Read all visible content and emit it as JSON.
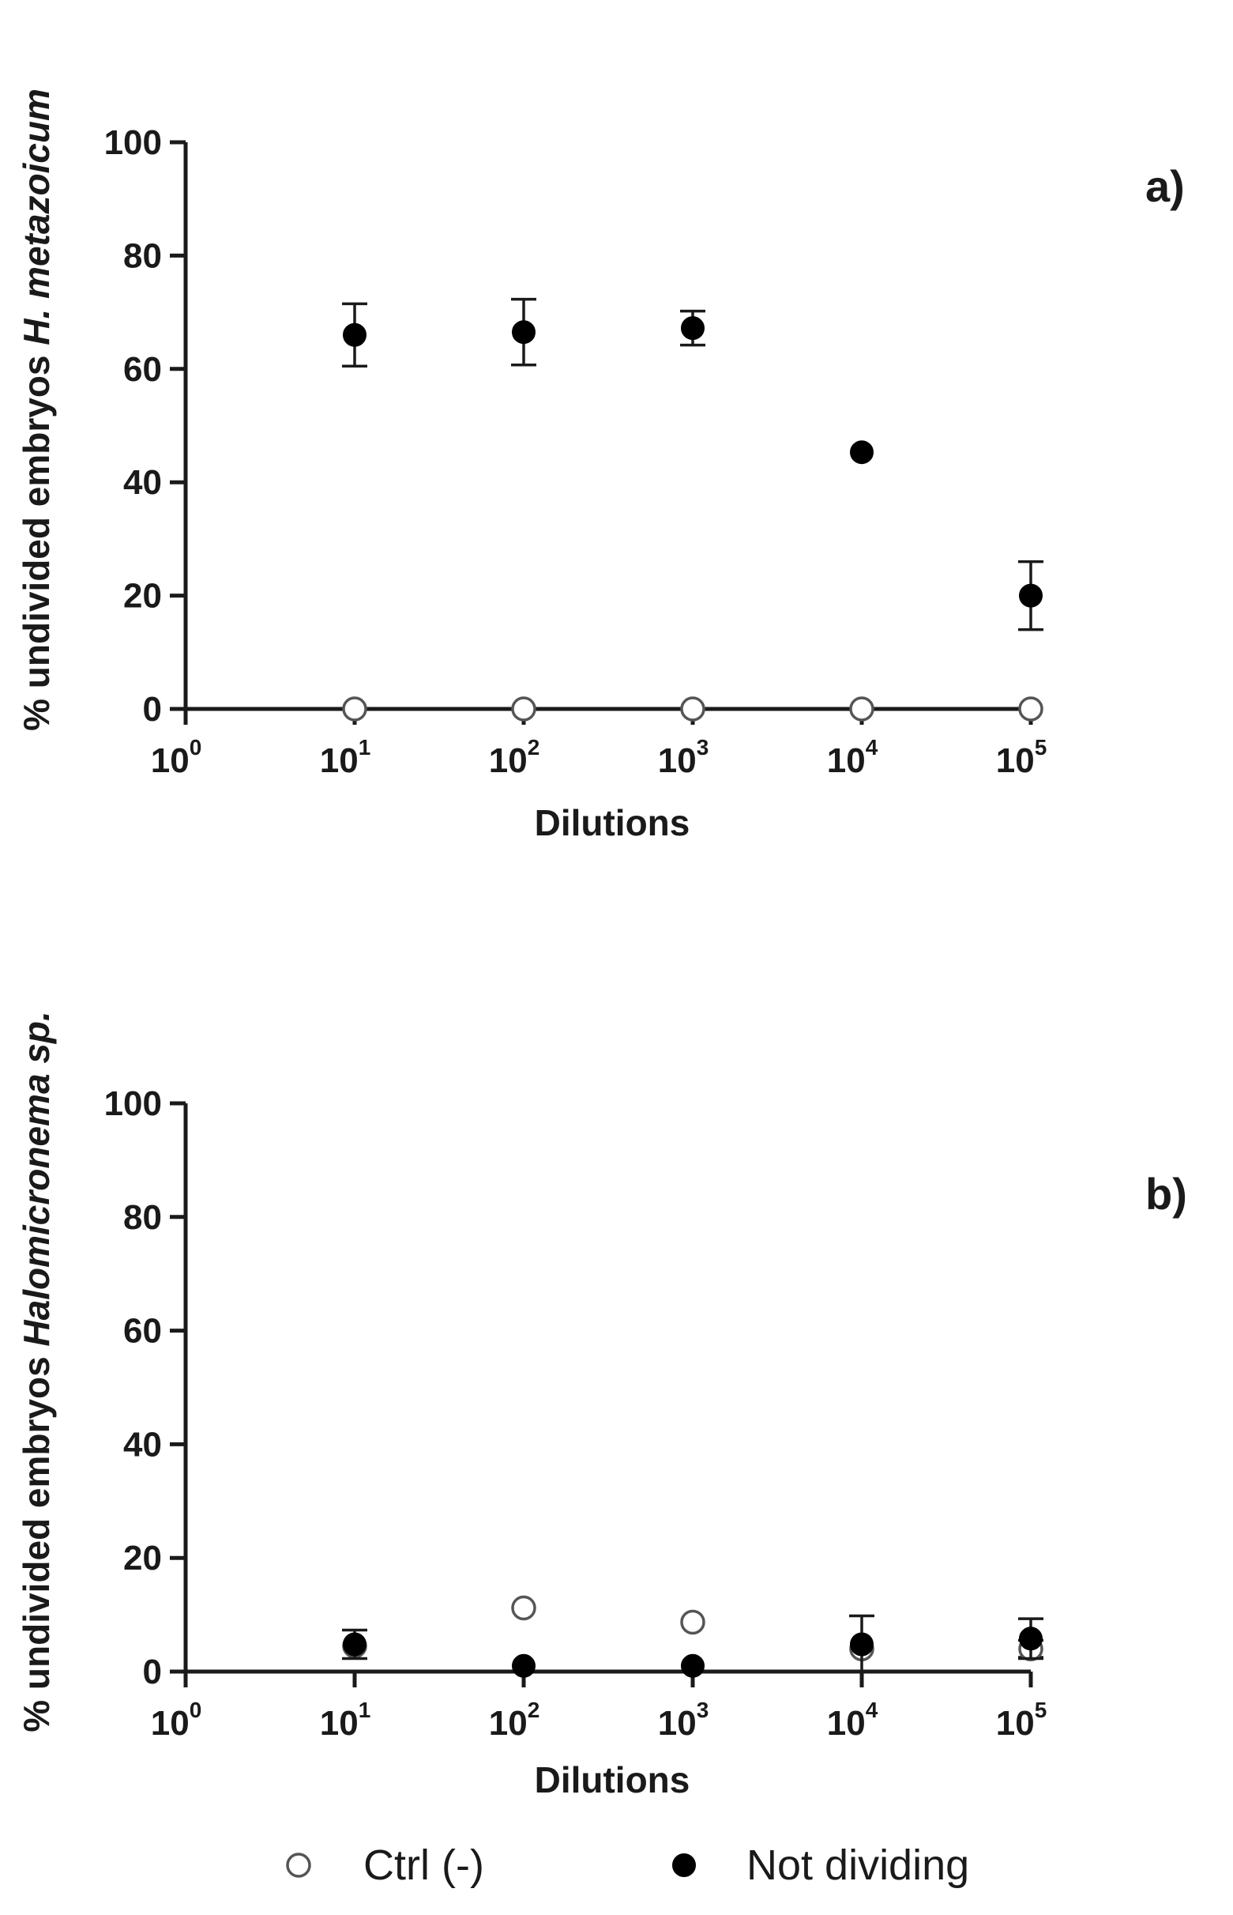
{
  "chart_data": [
    {
      "type": "scatter",
      "panel_label": "a)",
      "xlabel": "Dilutions",
      "ylabel_prefix": "% undivided embryos ",
      "ylabel_italic": "H. metazoicum",
      "x_scale": "log",
      "xlim": [
        1,
        100000
      ],
      "ylim": [
        0,
        100
      ],
      "x_ticks": [
        {
          "base": "10",
          "exp": "0"
        },
        {
          "base": "10",
          "exp": "1"
        },
        {
          "base": "10",
          "exp": "2"
        },
        {
          "base": "10",
          "exp": "3"
        },
        {
          "base": "10",
          "exp": "4"
        },
        {
          "base": "10",
          "exp": "5"
        }
      ],
      "y_ticks": [
        "0",
        "20",
        "40",
        "60",
        "80",
        "100"
      ],
      "series": [
        {
          "name": "Ctrl (-)",
          "marker": "open-circle",
          "points": [
            {
              "x": 10,
              "y": 0,
              "err": 0
            },
            {
              "x": 100,
              "y": 0,
              "err": 0
            },
            {
              "x": 1000,
              "y": 0,
              "err": 0
            },
            {
              "x": 10000,
              "y": 0,
              "err": 0
            },
            {
              "x": 100000,
              "y": 0,
              "err": 0
            }
          ]
        },
        {
          "name": "Not dividing",
          "marker": "filled-circle",
          "points": [
            {
              "x": 10,
              "y": 66,
              "err": 5.5
            },
            {
              "x": 100,
              "y": 66.5,
              "err": 5.8
            },
            {
              "x": 1000,
              "y": 67.2,
              "err": 3
            },
            {
              "x": 10000,
              "y": 45.3,
              "err": 0
            },
            {
              "x": 100000,
              "y": 20,
              "err": 6
            }
          ]
        }
      ]
    },
    {
      "type": "scatter",
      "panel_label": "b)",
      "xlabel": "Dilutions",
      "ylabel_prefix": "% undivided embryos ",
      "ylabel_italic": "Halomicronema sp.",
      "x_scale": "log",
      "xlim": [
        1,
        100000
      ],
      "ylim": [
        0,
        100
      ],
      "x_ticks": [
        {
          "base": "10",
          "exp": "0"
        },
        {
          "base": "10",
          "exp": "1"
        },
        {
          "base": "10",
          "exp": "2"
        },
        {
          "base": "10",
          "exp": "3"
        },
        {
          "base": "10",
          "exp": "4"
        },
        {
          "base": "10",
          "exp": "5"
        }
      ],
      "y_ticks": [
        "0",
        "20",
        "40",
        "60",
        "80",
        "100"
      ],
      "series": [
        {
          "name": "Ctrl (-)",
          "marker": "open-circle",
          "points": [
            {
              "x": 10,
              "y": 4.5,
              "err": 0
            },
            {
              "x": 100,
              "y": 11.2,
              "err": 0
            },
            {
              "x": 1000,
              "y": 8.7,
              "err": 0
            },
            {
              "x": 10000,
              "y": 4,
              "err": 0
            },
            {
              "x": 100000,
              "y": 4,
              "err": 1.5
            }
          ]
        },
        {
          "name": "Not dividing",
          "marker": "filled-circle",
          "points": [
            {
              "x": 10,
              "y": 4.8,
              "err": 2.5
            },
            {
              "x": 100,
              "y": 1,
              "err": 0
            },
            {
              "x": 1000,
              "y": 1,
              "err": 0
            },
            {
              "x": 10000,
              "y": 4.8,
              "err": 5
            },
            {
              "x": 100000,
              "y": 5.8,
              "err": 3.5
            }
          ]
        }
      ]
    }
  ],
  "legend": {
    "placement": "bottom",
    "items": [
      {
        "label": "Ctrl (-)",
        "marker": "open-circle"
      },
      {
        "label": "Not dividing",
        "marker": "filled-circle"
      }
    ]
  }
}
